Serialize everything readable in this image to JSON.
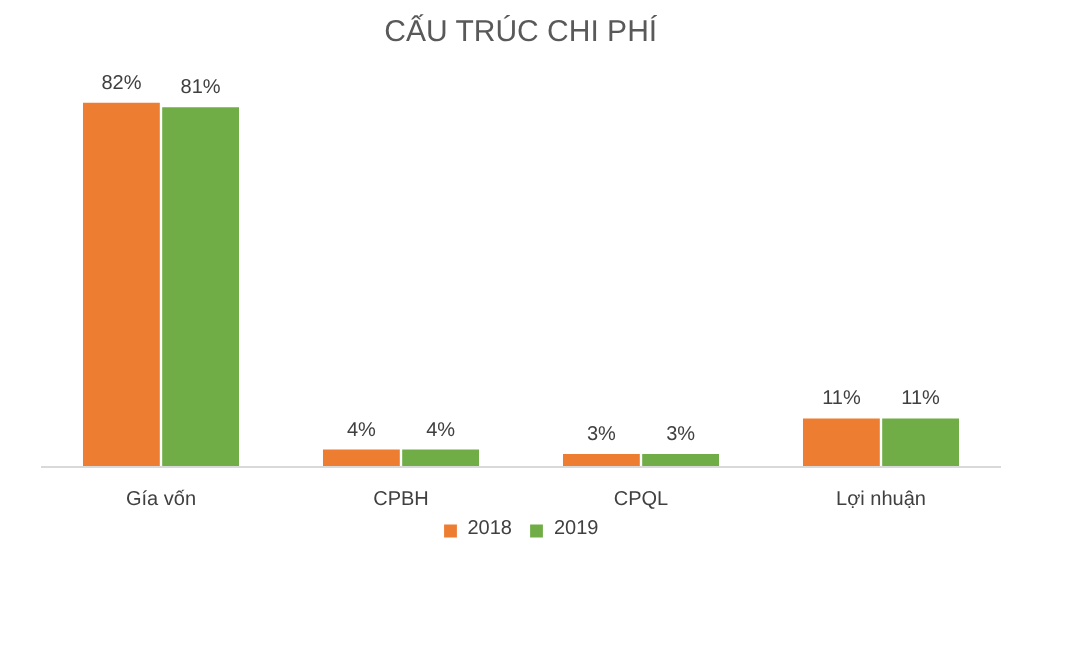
{
  "chart_data": {
    "type": "bar",
    "title": "CẤU TRÚC CHI PHÍ",
    "categories": [
      "Gía vốn",
      "CPBH",
      "CPQL",
      "Lợi nhuận"
    ],
    "legend": "bottom",
    "series": [
      {
        "name": "2018",
        "color": "#ed7d31",
        "values": [
          82,
          4,
          3,
          11
        ],
        "value_labels": [
          "82%",
          "4%",
          "3%",
          "11%"
        ]
      },
      {
        "name": "2019",
        "color": "#70ad47",
        "values": [
          81,
          4,
          3,
          11
        ],
        "value_labels": [
          "81%",
          "4%",
          "3%",
          "11%"
        ]
      }
    ]
  }
}
